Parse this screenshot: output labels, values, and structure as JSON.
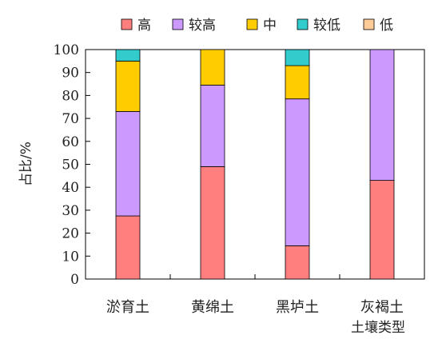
{
  "chart_data": {
    "type": "bar",
    "stacked": true,
    "categories": [
      "淤育土",
      "黄绵土",
      "黑垆土",
      "灰褐土"
    ],
    "xlabel": "土壤类型",
    "ylabel": "占比/%",
    "ylim": [
      0,
      100
    ],
    "yticks": [
      0,
      10,
      20,
      30,
      40,
      50,
      60,
      70,
      80,
      90,
      100
    ],
    "grid": false,
    "legend_position": "top",
    "series": [
      {
        "name": "高",
        "color": "#ff7f7f",
        "values": [
          27.5,
          49,
          14.5,
          43
        ]
      },
      {
        "name": "较高",
        "color": "#cc99ff",
        "values": [
          45.5,
          35.5,
          64,
          57
        ]
      },
      {
        "name": "中",
        "color": "#ffcc00",
        "values": [
          22,
          15.5,
          14.5,
          0
        ]
      },
      {
        "name": "较低",
        "color": "#33cccc",
        "values": [
          5,
          0,
          7,
          0
        ]
      },
      {
        "name": "低",
        "color": "#ffcc99",
        "values": [
          0,
          0,
          0,
          0
        ]
      }
    ]
  }
}
